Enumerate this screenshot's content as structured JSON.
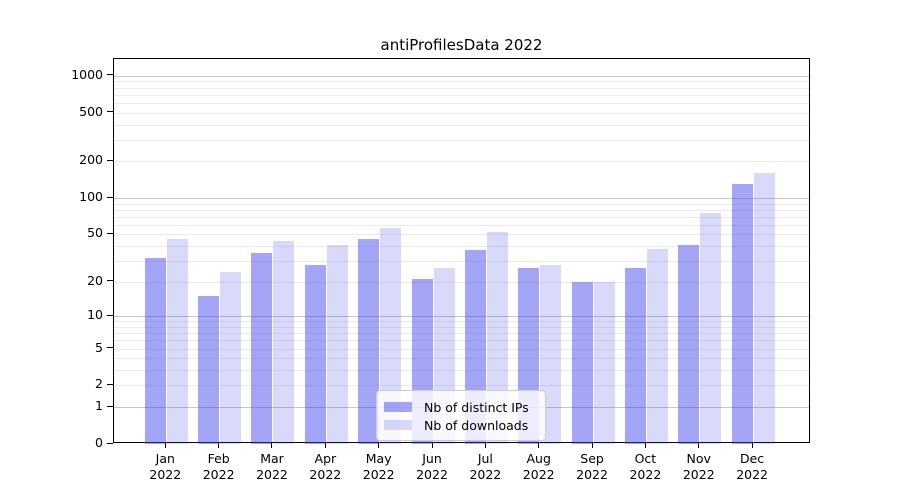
{
  "chart_data": {
    "type": "bar",
    "title": "antiProfilesData 2022",
    "categories": [
      "Jan",
      "Feb",
      "Mar",
      "Apr",
      "May",
      "Jun",
      "Jul",
      "Aug",
      "Sep",
      "Oct",
      "Nov",
      "Dec"
    ],
    "x_tick_year": "2022",
    "series": [
      {
        "name": "Nb of distinct IPs",
        "color": "rgba(64,64,238,0.47)",
        "values": [
          32,
          15,
          35,
          28,
          46,
          21,
          37,
          26,
          20,
          26,
          41,
          130
        ]
      },
      {
        "name": "Nb of downloads",
        "color": "rgba(64,64,238,0.20)",
        "values": [
          46,
          24,
          44,
          41,
          57,
          26,
          52,
          28,
          20,
          38,
          75,
          160
        ]
      }
    ],
    "y_ticks": [
      0,
      1,
      2,
      5,
      10,
      20,
      50,
      100,
      200,
      500,
      1000
    ],
    "y_scale": "log1p",
    "ylim": [
      0,
      1320
    ],
    "grid": true,
    "legend_position": "lower center",
    "colors": {
      "axis": "#000000",
      "grid_major": "#c6c6c6",
      "grid_minor": "#ebebeb"
    }
  }
}
